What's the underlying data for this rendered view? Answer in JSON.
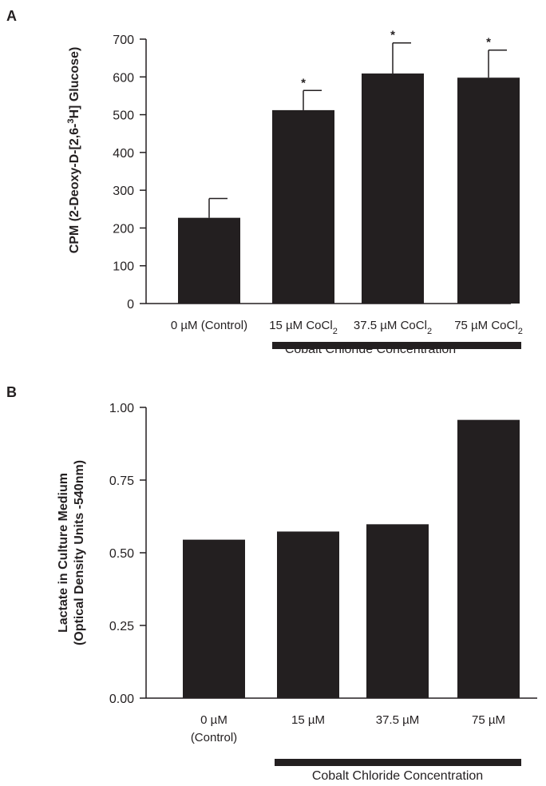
{
  "chart_data": [
    {
      "panel": "A",
      "type": "bar",
      "ylabel": {
        "prefix": "CPM (2-Deoxy-D-[2,6-",
        "sup": "3",
        "suffix": "H] Glucose)"
      },
      "ylim": [
        0,
        700
      ],
      "yticks": [
        "0",
        "100",
        "200",
        "300",
        "400",
        "500",
        "600",
        "700"
      ],
      "categories": [
        {
          "text": "0 µM (Control)",
          "sub": ""
        },
        {
          "text": "15 µM CoCl",
          "sub": "2"
        },
        {
          "text": "37.5 µM CoCl",
          "sub": "2"
        },
        {
          "text": "75 µM CoCl",
          "sub": "2"
        }
      ],
      "values": [
        227,
        512,
        609,
        598
      ],
      "error_upper": [
        278,
        564,
        690,
        671
      ],
      "significance": [
        "",
        "*",
        "*",
        "*"
      ],
      "bracket_label": "Cobalt Chloride Concentration",
      "color": "#231f20"
    },
    {
      "panel": "B",
      "type": "bar",
      "ylabel": {
        "line1": "Lactate in Culture Medium",
        "line2": "(Optical Density Units -540nm)"
      },
      "ylim": [
        0,
        1
      ],
      "yticks": [
        "0.00",
        "0.25",
        "0.50",
        "0.75",
        "1.00"
      ],
      "categories": [
        {
          "line1": "0 µM",
          "line2": "(Control)"
        },
        {
          "line1": "15 µM",
          "line2": ""
        },
        {
          "line1": "37.5 µM",
          "line2": ""
        },
        {
          "line1": "75 µM",
          "line2": ""
        }
      ],
      "values": [
        0.545,
        0.573,
        0.598,
        0.957
      ],
      "bracket_label": "Cobalt Chloride Concentration",
      "color": "#231f20"
    }
  ]
}
